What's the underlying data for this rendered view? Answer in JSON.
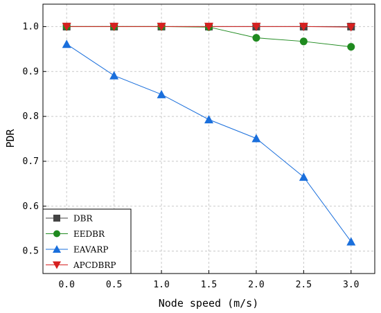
{
  "chart_data": {
    "type": "line",
    "xlabel": "Node speed (m/s)",
    "ylabel": "PDR",
    "x": [
      0.0,
      0.5,
      1.0,
      1.5,
      2.0,
      2.5,
      3.0
    ],
    "x_tick_labels": [
      "0.0",
      "0.5",
      "1.0",
      "1.5",
      "2.0",
      "2.5",
      "3.0"
    ],
    "xlim": [
      -0.25,
      3.25
    ],
    "ylim": [
      0.45,
      1.05
    ],
    "y_ticks": [
      0.5,
      0.6,
      0.7,
      0.8,
      0.9,
      1.0
    ],
    "y_tick_labels": [
      "0.5",
      "0.6",
      "0.7",
      "0.8",
      "0.9",
      "1.0"
    ],
    "grid": true,
    "legend_position": "bottom-left",
    "series": [
      {
        "name": "DBR",
        "values": [
          1.0,
          1.0,
          1.0,
          1.0,
          1.0,
          1.0,
          1.0
        ],
        "color": "#444444",
        "marker": "square"
      },
      {
        "name": "EEDBR",
        "values": [
          1.0,
          1.0,
          1.0,
          0.999,
          0.975,
          0.967,
          0.955
        ],
        "color": "#1f8a1f",
        "marker": "circle"
      },
      {
        "name": "EAVARP",
        "values": [
          0.961,
          0.891,
          0.849,
          0.793,
          0.751,
          0.665,
          0.521
        ],
        "color": "#1a6fdc",
        "marker": "triangle-up"
      },
      {
        "name": "APCDBRP",
        "values": [
          1.0,
          1.0,
          1.0,
          1.0,
          1.0,
          1.0,
          0.999
        ],
        "color": "#d62020",
        "marker": "triangle-down"
      }
    ]
  }
}
